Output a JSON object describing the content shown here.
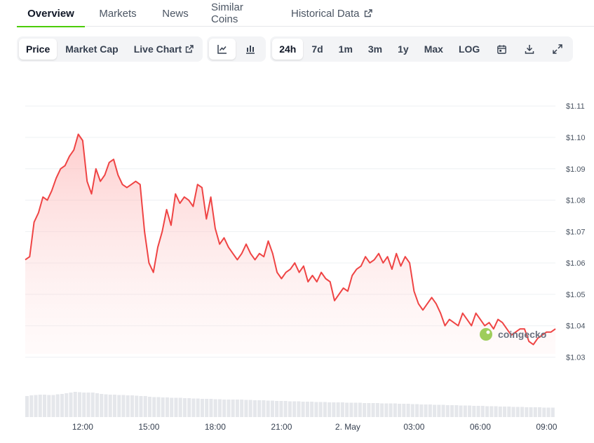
{
  "tabs": [
    {
      "label": "Overview",
      "active": true
    },
    {
      "label": "Markets"
    },
    {
      "label": "News"
    },
    {
      "label": "Similar Coins"
    },
    {
      "label": "Historical Data",
      "icon": "external-link-icon"
    }
  ],
  "toolbar": {
    "view": [
      {
        "label": "Price",
        "active": true
      },
      {
        "label": "Market Cap"
      },
      {
        "label": "Live Chart",
        "icon": "external-link-icon"
      }
    ],
    "chart_type": [
      {
        "icon": "line-chart-icon",
        "active": true
      },
      {
        "icon": "candlestick-icon"
      }
    ],
    "ranges": [
      {
        "label": "24h",
        "active": true
      },
      {
        "label": "7d"
      },
      {
        "label": "1m"
      },
      {
        "label": "3m"
      },
      {
        "label": "1y"
      },
      {
        "label": "Max"
      },
      {
        "label": "LOG"
      }
    ],
    "tools": [
      {
        "icon": "calendar-icon"
      },
      {
        "icon": "download-icon"
      },
      {
        "icon": "fullscreen-icon"
      }
    ]
  },
  "watermark": "coingecko",
  "colors": {
    "line": "#ef4444",
    "fill": "#fecaca",
    "volume": "#e5e7eb",
    "accent": "#4bcc00"
  },
  "chart_data": {
    "type": "line",
    "x_tick_labels": [
      "12:00",
      "15:00",
      "18:00",
      "21:00",
      "2. May",
      "03:00",
      "06:00",
      "09:00"
    ],
    "x_ticks_hours": [
      2.6,
      5.6,
      8.6,
      11.6,
      14.6,
      17.6,
      20.6,
      23.6
    ],
    "y_tick_labels": [
      "$1.03",
      "$1.04",
      "$1.05",
      "$1.06",
      "$1.07",
      "$1.08",
      "$1.09",
      "$1.10",
      "$1.11"
    ],
    "y_ticks": [
      1.03,
      1.04,
      1.05,
      1.06,
      1.07,
      1.08,
      1.09,
      1.1,
      1.11
    ],
    "ylim": [
      1.03,
      1.11
    ],
    "x_hours": [
      0,
      0.2,
      0.4,
      0.6,
      0.8,
      1.0,
      1.2,
      1.4,
      1.6,
      1.8,
      2.0,
      2.2,
      2.4,
      2.6,
      2.8,
      3.0,
      3.2,
      3.4,
      3.6,
      3.8,
      4.0,
      4.2,
      4.4,
      4.6,
      4.8,
      5.0,
      5.2,
      5.4,
      5.6,
      5.8,
      6.0,
      6.2,
      6.4,
      6.6,
      6.8,
      7.0,
      7.2,
      7.4,
      7.6,
      7.8,
      8.0,
      8.2,
      8.4,
      8.6,
      8.8,
      9.0,
      9.2,
      9.4,
      9.6,
      9.8,
      10.0,
      10.2,
      10.4,
      10.6,
      10.8,
      11.0,
      11.2,
      11.4,
      11.6,
      11.8,
      12.0,
      12.2,
      12.4,
      12.6,
      12.8,
      13.0,
      13.2,
      13.4,
      13.6,
      13.8,
      14.0,
      14.2,
      14.4,
      14.6,
      14.8,
      15.0,
      15.2,
      15.4,
      15.6,
      15.8,
      16.0,
      16.2,
      16.4,
      16.6,
      16.8,
      17.0,
      17.2,
      17.4,
      17.6,
      17.8,
      18.0,
      18.2,
      18.4,
      18.6,
      18.8,
      19.0,
      19.2,
      19.4,
      19.6,
      19.8,
      20.0,
      20.2,
      20.4,
      20.6,
      20.8,
      21.0,
      21.2,
      21.4,
      21.6,
      21.8,
      22.0,
      22.2,
      22.4,
      22.6,
      22.8,
      23.0,
      23.2,
      23.4,
      23.6,
      23.8,
      24.0
    ],
    "y": [
      1.061,
      1.062,
      1.073,
      1.076,
      1.081,
      1.08,
      1.083,
      1.087,
      1.09,
      1.091,
      1.094,
      1.096,
      1.101,
      1.099,
      1.086,
      1.082,
      1.09,
      1.086,
      1.088,
      1.092,
      1.093,
      1.088,
      1.085,
      1.084,
      1.085,
      1.086,
      1.085,
      1.07,
      1.06,
      1.057,
      1.065,
      1.07,
      1.077,
      1.072,
      1.082,
      1.079,
      1.081,
      1.08,
      1.078,
      1.085,
      1.084,
      1.074,
      1.081,
      1.071,
      1.066,
      1.068,
      1.065,
      1.063,
      1.061,
      1.063,
      1.066,
      1.063,
      1.061,
      1.063,
      1.062,
      1.067,
      1.063,
      1.057,
      1.055,
      1.057,
      1.058,
      1.06,
      1.057,
      1.059,
      1.054,
      1.056,
      1.054,
      1.057,
      1.055,
      1.054,
      1.048,
      1.05,
      1.052,
      1.051,
      1.056,
      1.058,
      1.059,
      1.062,
      1.06,
      1.061,
      1.063,
      1.06,
      1.062,
      1.058,
      1.063,
      1.059,
      1.062,
      1.06,
      1.051,
      1.047,
      1.045,
      1.047,
      1.049,
      1.047,
      1.044,
      1.04,
      1.042,
      1.041,
      1.04,
      1.044,
      1.042,
      1.04,
      1.044,
      1.042,
      1.04,
      1.041,
      1.039,
      1.042,
      1.041,
      1.039,
      1.037,
      1.038,
      1.039,
      1.039,
      1.035,
      1.034,
      1.036,
      1.037,
      1.038,
      1.038,
      1.039
    ],
    "volume_relative": [
      0.6,
      0.62,
      0.63,
      0.64,
      0.64,
      0.63,
      0.63,
      0.65,
      0.66,
      0.68,
      0.7,
      0.72,
      0.71,
      0.7,
      0.7,
      0.7,
      0.68,
      0.66,
      0.65,
      0.64,
      0.64,
      0.63,
      0.63,
      0.62,
      0.62,
      0.61,
      0.6,
      0.6,
      0.58,
      0.57,
      0.57,
      0.56,
      0.56,
      0.55,
      0.55,
      0.55,
      0.54,
      0.54,
      0.53,
      0.53,
      0.52,
      0.52,
      0.52,
      0.51,
      0.51,
      0.5,
      0.5,
      0.5,
      0.5,
      0.5,
      0.49,
      0.49,
      0.48,
      0.48,
      0.48,
      0.47,
      0.47,
      0.46,
      0.46,
      0.46,
      0.45,
      0.45,
      0.45,
      0.44,
      0.44,
      0.44,
      0.43,
      0.43,
      0.43,
      0.42,
      0.42,
      0.42,
      0.42,
      0.41,
      0.41,
      0.41,
      0.41,
      0.4,
      0.4,
      0.4,
      0.4,
      0.39,
      0.39,
      0.39,
      0.39,
      0.38,
      0.38,
      0.38,
      0.37,
      0.37,
      0.36,
      0.36,
      0.36,
      0.35,
      0.35,
      0.35,
      0.34,
      0.34,
      0.34,
      0.33,
      0.33,
      0.33,
      0.32,
      0.32,
      0.32,
      0.31,
      0.31,
      0.31,
      0.3,
      0.3,
      0.3,
      0.29,
      0.29,
      0.29,
      0.28,
      0.28,
      0.28,
      0.28,
      0.27,
      0.27,
      0.27
    ],
    "grid": true,
    "xlabel": "",
    "ylabel": ""
  }
}
